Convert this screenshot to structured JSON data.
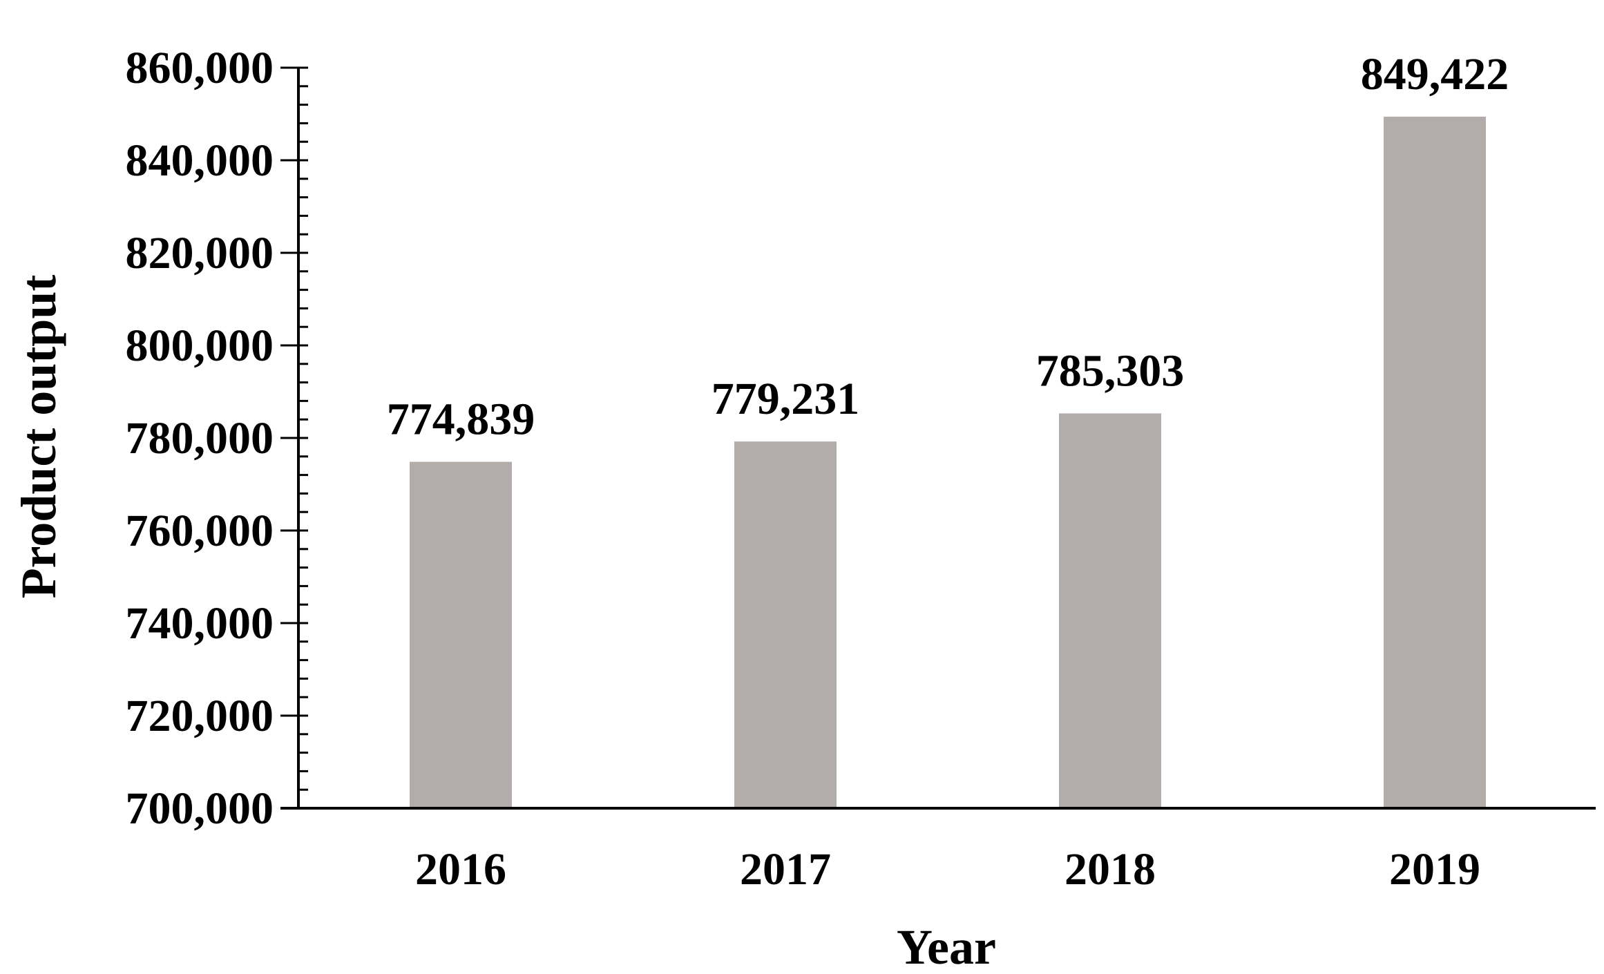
{
  "chart_data": {
    "type": "bar",
    "title": "",
    "xlabel": "Year",
    "ylabel": "Product output",
    "categories": [
      "2016",
      "2017",
      "2018",
      "2019"
    ],
    "values": [
      774839,
      779231,
      785303,
      849422
    ],
    "value_labels": [
      "774,839",
      "779,231",
      "785,303",
      "849,422"
    ],
    "ylim": [
      700000,
      860000
    ],
    "yticks": [
      700000,
      720000,
      740000,
      760000,
      780000,
      800000,
      820000,
      840000,
      860000
    ],
    "ytick_labels": [
      "700,000",
      "720,000",
      "740,000",
      "760,000",
      "780,000",
      "800,000",
      "820,000",
      "840,000",
      "860,000"
    ],
    "minor_tick_step": 4000,
    "grid": false,
    "legend": "none",
    "bar_color": "#b2acab",
    "axis_color": "#000000"
  }
}
